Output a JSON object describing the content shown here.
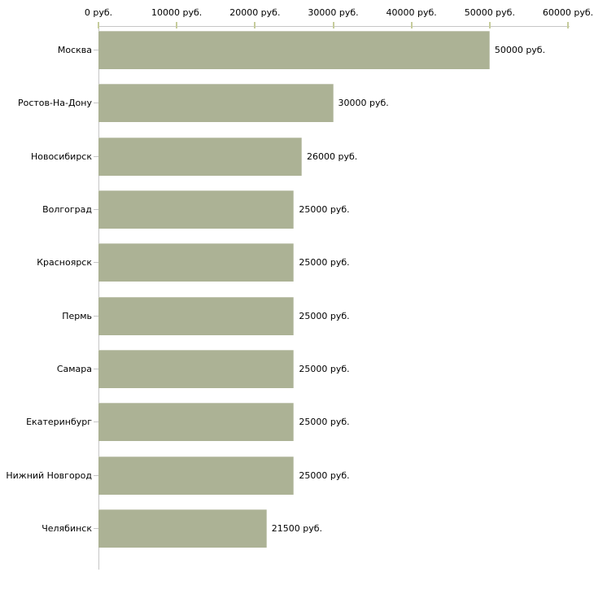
{
  "chart_data": {
    "type": "bar",
    "orientation": "horizontal",
    "title": "",
    "unit": "руб.",
    "categories": [
      "Москва",
      "Ростов-На-Дону",
      "Новосибирск",
      "Волгоград",
      "Красноярск",
      "Пермь",
      "Самара",
      "Екатеринбург",
      "Нижний Новгород",
      "Челябинск"
    ],
    "values": [
      50000,
      30000,
      26000,
      25000,
      25000,
      25000,
      25000,
      25000,
      25000,
      21500
    ],
    "value_labels": [
      "50000 руб.",
      "30000 руб.",
      "26000 руб.",
      "25000 руб.",
      "25000 руб.",
      "25000 руб.",
      "25000 руб.",
      "25000 руб.",
      "25000 руб.",
      "21500 руб."
    ],
    "x_ticks": [
      0,
      10000,
      20000,
      30000,
      40000,
      50000,
      60000
    ],
    "x_tick_labels": [
      "0 руб.",
      "10000 руб.",
      "20000 руб.",
      "30000 руб.",
      "40000 руб.",
      "50000 руб.",
      "60000 руб."
    ],
    "xlim": [
      0,
      60000
    ],
    "grid": false,
    "legend": false,
    "colors": {
      "bar": "#acb295",
      "axis": "#c6c6c6",
      "tick": "#c6cc9c",
      "text": "#000000",
      "background": "#ffffff"
    }
  }
}
